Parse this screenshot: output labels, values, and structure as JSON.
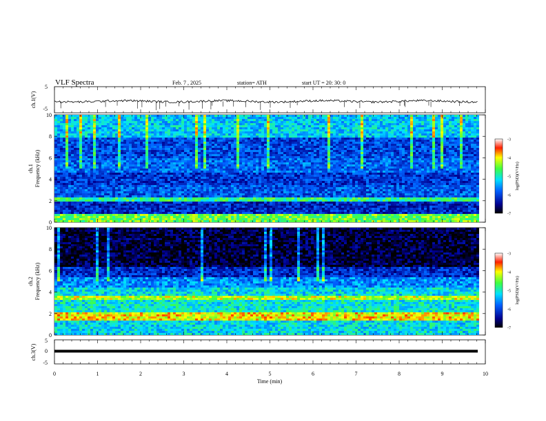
{
  "header": {
    "title": "VLF Spectra",
    "date": "Feb. 7 , 2025",
    "station": "station= ATH",
    "start": "start UT = 20: 30: 0"
  },
  "chart_data": [
    {
      "type": "line",
      "panel": "ch1-voltage",
      "ylabel": "ch.1(V)",
      "ylim": [
        -5,
        5
      ],
      "yticks": [
        "5",
        "-5"
      ],
      "xlim": [
        0,
        10
      ],
      "series": [
        {
          "values_note": "noisy trace near -0.6 V",
          "baseline": -0.6
        }
      ]
    },
    {
      "type": "heatmap",
      "panel": "ch1-spectrogram",
      "ylabel": "ch.1 Frequency (kHz)",
      "ylim": [
        0,
        10
      ],
      "yticks": [
        "0",
        "2",
        "4",
        "6",
        "8",
        "10"
      ],
      "xlim": [
        0,
        9.8
      ],
      "colorbar": {
        "label": "log(PSD)(V²/Hz)",
        "range": [
          -7,
          -3
        ],
        "ticks": [
          "-3",
          "-4",
          "-5",
          "-6",
          "-7"
        ]
      },
      "bands": [
        {
          "freq_from": 0,
          "freq_to": 0.8,
          "level": -4.5
        },
        {
          "freq_from": 0.8,
          "freq_to": 2.0,
          "level": -6.2
        },
        {
          "freq_from": 2.0,
          "freq_to": 2.5,
          "level": -4.8
        },
        {
          "freq_from": 2.5,
          "freq_to": 3.6,
          "level": -5.9
        },
        {
          "freq_from": 3.6,
          "freq_to": 4.8,
          "level": -6.1
        },
        {
          "freq_from": 4.8,
          "freq_to": 6.0,
          "level": -5.8
        },
        {
          "freq_from": 6.0,
          "freq_to": 8.0,
          "level": -6.0
        },
        {
          "freq_from": 8.0,
          "freq_to": 10.0,
          "level": -5.3
        }
      ]
    },
    {
      "type": "heatmap",
      "panel": "ch2-spectrogram",
      "ylabel": "ch.2 Frequency (kHz)",
      "ylim": [
        0,
        10
      ],
      "yticks": [
        "0",
        "2",
        "4",
        "6",
        "8",
        "10"
      ],
      "xlim": [
        0,
        9.8
      ],
      "colorbar": {
        "label": "log(PSD)(V²/Hz)",
        "range": [
          -7,
          -3
        ],
        "ticks": [
          "-3",
          "-4",
          "-5",
          "-6",
          "-7"
        ]
      },
      "bands": [
        {
          "freq_from": 0,
          "freq_to": 1.5,
          "level": -5.2
        },
        {
          "freq_from": 1.5,
          "freq_to": 2.3,
          "level": -4.0
        },
        {
          "freq_from": 2.3,
          "freq_to": 3.3,
          "level": -5.1
        },
        {
          "freq_from": 3.3,
          "freq_to": 3.7,
          "level": -4.2
        },
        {
          "freq_from": 3.7,
          "freq_to": 4.5,
          "level": -5.2
        },
        {
          "freq_from": 4.5,
          "freq_to": 5.5,
          "level": -5.6
        },
        {
          "freq_from": 5.5,
          "freq_to": 6.5,
          "level": -6.2
        },
        {
          "freq_from": 6.5,
          "freq_to": 10.0,
          "level": -6.8
        }
      ]
    },
    {
      "type": "line",
      "panel": "ch3-voltage",
      "ylabel": "ch.3(V)",
      "ylim": [
        -5,
        5
      ],
      "yticks": [
        "5",
        "0",
        "-5"
      ],
      "xlim": [
        0,
        10
      ],
      "xlabel": "Time (min)",
      "xticks": [
        "0",
        "1",
        "2",
        "3",
        "4",
        "5",
        "6",
        "7",
        "8",
        "9",
        "10"
      ],
      "series": [
        {
          "values_note": "flat thick trace",
          "baseline": -1.5
        }
      ]
    }
  ]
}
